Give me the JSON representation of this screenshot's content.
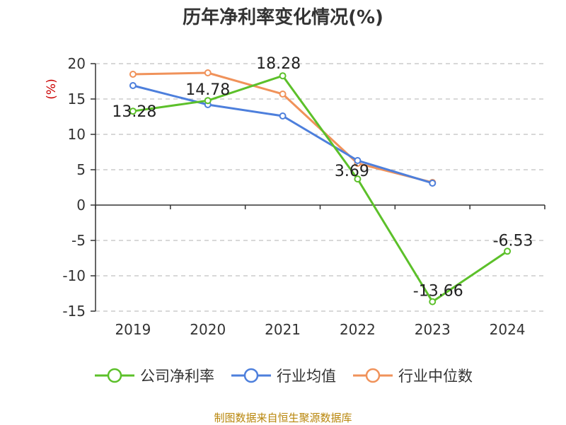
{
  "source": "制图数据来自恒生聚源数据库",
  "chart_data": {
    "type": "line",
    "title": "历年净利率变化情况(%)",
    "ylabel": "(%)",
    "xlabel": "",
    "categories": [
      "2019",
      "2020",
      "2021",
      "2022",
      "2023",
      "2024"
    ],
    "ylim": [
      -15,
      20
    ],
    "yticks": [
      20,
      15,
      10,
      5,
      0,
      -5,
      -10,
      -15
    ],
    "grid": true,
    "legend_position": "bottom",
    "series": [
      {
        "name": "公司净利率",
        "color": "#5cc02a",
        "values": [
          13.28,
          14.78,
          18.28,
          3.69,
          -13.66,
          -6.53
        ],
        "labels": [
          "13.28",
          "14.78",
          "18.28",
          "3.69",
          "-13.66",
          "-6.53"
        ]
      },
      {
        "name": "行业均值",
        "color": "#4d7fdc",
        "values": [
          16.9,
          14.2,
          12.6,
          6.3,
          3.1,
          null
        ]
      },
      {
        "name": "行业中位数",
        "color": "#f0925a",
        "values": [
          18.5,
          18.7,
          15.7,
          5.9,
          3.2,
          null
        ]
      }
    ]
  }
}
